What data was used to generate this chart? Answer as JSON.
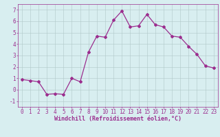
{
  "x": [
    0,
    1,
    2,
    3,
    4,
    5,
    6,
    7,
    8,
    9,
    10,
    11,
    12,
    13,
    14,
    15,
    16,
    17,
    18,
    19,
    20,
    21,
    22,
    23
  ],
  "y": [
    0.9,
    0.8,
    0.7,
    -0.4,
    -0.35,
    -0.4,
    1.0,
    0.7,
    3.3,
    4.7,
    4.6,
    6.1,
    6.9,
    5.5,
    5.6,
    6.6,
    5.7,
    5.5,
    4.7,
    4.6,
    3.8,
    3.1,
    2.1,
    1.9
  ],
  "line_color": "#9b2d8e",
  "marker": "D",
  "markersize": 2.0,
  "linewidth": 0.9,
  "xlabel": "Windchill (Refroidissement éolien,°C)",
  "xlabel_fontsize": 6.0,
  "xlim": [
    -0.5,
    23.5
  ],
  "ylim": [
    -1.5,
    7.5
  ],
  "yticks": [
    -1,
    0,
    1,
    2,
    3,
    4,
    5,
    6,
    7
  ],
  "xticks": [
    0,
    1,
    2,
    3,
    4,
    5,
    6,
    7,
    8,
    9,
    10,
    11,
    12,
    13,
    14,
    15,
    16,
    17,
    18,
    19,
    20,
    21,
    22,
    23
  ],
  "grid_color": "#b0c8c8",
  "background_color": "#d8eef0",
  "tick_color": "#9b2d8e",
  "tick_fontsize": 5.5
}
